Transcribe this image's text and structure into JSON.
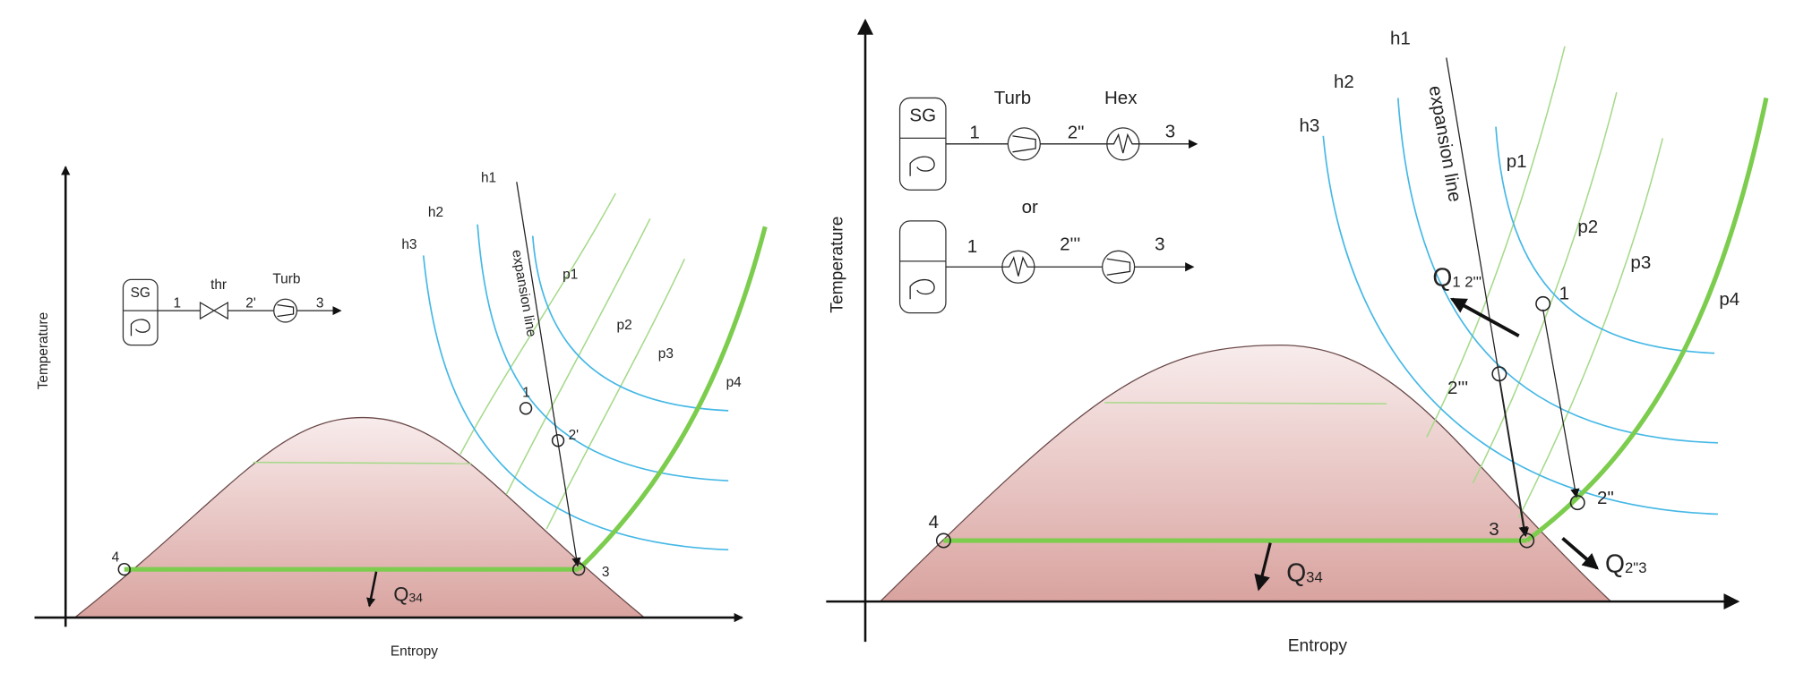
{
  "left": {
    "y_axis": "Temperature",
    "x_axis": "Entropy",
    "schematic": {
      "boiler": "SG",
      "valve": "thr",
      "turbine": "Turb",
      "streams": [
        "1",
        "2'",
        "3"
      ]
    },
    "enthalpy_lines": [
      "h1",
      "h2",
      "h3"
    ],
    "pressure_lines": [
      "p1",
      "p2",
      "p3",
      "p4"
    ],
    "expansion": "expansion line",
    "states": [
      "1",
      "2'",
      "3",
      "4"
    ],
    "heat": {
      "symbol": "Q",
      "subscript": "34"
    }
  },
  "right": {
    "y_axis": "Temperature",
    "x_axis": "Entropy",
    "schematic": {
      "boiler": "SG",
      "turbine": "Turb",
      "exchanger": "Hex",
      "route_a": [
        "1",
        "2\"",
        "3"
      ],
      "separator": "or",
      "route_b": [
        "1",
        "2'''",
        "3"
      ]
    },
    "enthalpy_lines": [
      "h1",
      "h2",
      "h3"
    ],
    "pressure_lines": [
      "p1",
      "p2",
      "p3",
      "p4"
    ],
    "expansion": "expansion line",
    "states": [
      "1",
      "2'''",
      "2\"",
      "3",
      "4"
    ],
    "heats": [
      {
        "symbol": "Q",
        "subscript": "1 2'''"
      },
      {
        "symbol": "Q",
        "subscript": "2\"3"
      },
      {
        "symbol": "Q",
        "subscript": "34"
      }
    ]
  }
}
